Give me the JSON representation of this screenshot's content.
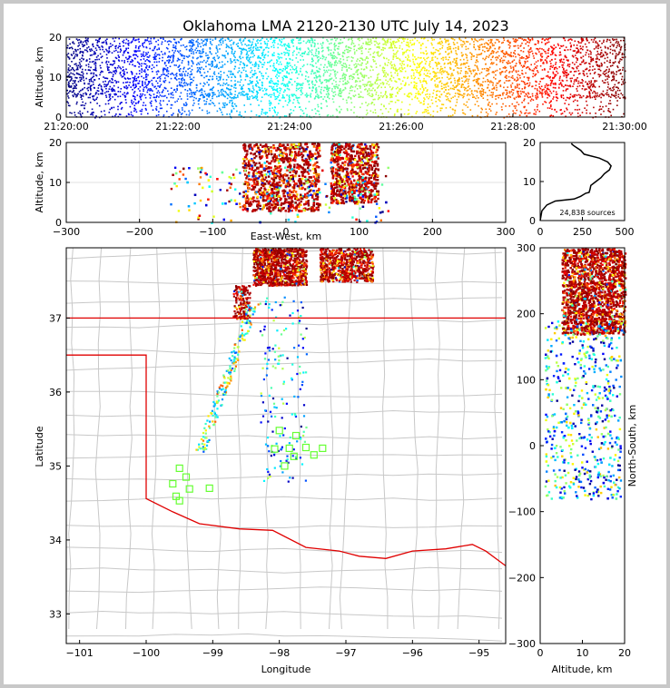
{
  "title": "Oklahoma LMA 2120-2130 UTC July 14, 2023",
  "colors": {
    "state_border": "#e00000",
    "county": "#c8c8c8",
    "station": "#66ff33",
    "frame": "#c8c8c8"
  },
  "chart_data": [
    {
      "name": "time-height",
      "type": "scatter",
      "ylabel": "Altitude, km",
      "ylim": [
        0,
        20
      ],
      "xticks": [
        "21:20:00",
        "21:22:00",
        "21:24:00",
        "21:26:00",
        "21:28:00",
        "21:30:00"
      ],
      "yticks": [
        "0",
        "10",
        "20"
      ]
    },
    {
      "name": "ew-altitude",
      "type": "scatter",
      "xlabel": "East-West, km",
      "ylabel": "Altitude, km",
      "xlim": [
        -300,
        300
      ],
      "ylim": [
        0,
        20
      ],
      "xticks": [
        "−300",
        "−200",
        "−100",
        "0",
        "100",
        "200",
        "300"
      ],
      "yticks": [
        "0",
        "10",
        "20"
      ]
    },
    {
      "name": "altitude-histogram",
      "type": "line",
      "xlim": [
        0,
        500
      ],
      "ylim": [
        0,
        20
      ],
      "xticks": [
        "0",
        "250",
        "500"
      ],
      "yticks": [
        "0",
        "10",
        "20"
      ],
      "annotation": "24,838 sources",
      "x": [
        0,
        10,
        40,
        90,
        200,
        240,
        250,
        270,
        290,
        295,
        300,
        330,
        360,
        380,
        410,
        420,
        400,
        350,
        260,
        240,
        205,
        190,
        185
      ],
      "y": [
        0,
        2.5,
        4,
        5,
        5.5,
        6.2,
        6.5,
        7,
        7.2,
        8,
        9,
        10,
        11,
        12,
        13,
        14,
        15,
        16,
        17,
        18,
        19,
        19.5,
        19.8
      ]
    },
    {
      "name": "plan-view",
      "type": "scatter",
      "xlabel": "Longitude",
      "ylabel": "Latitude",
      "xlim": [
        -101.2,
        -94.6
      ],
      "ylim": [
        32.6,
        37.95
      ],
      "xticks": [
        "−101",
        "−100",
        "−99",
        "−98",
        "−97",
        "−96",
        "−95"
      ],
      "yticks": [
        "33",
        "34",
        "35",
        "36",
        "37"
      ]
    },
    {
      "name": "ns-altitude",
      "type": "scatter",
      "xlabel": "Altitude, km",
      "ylabel": "North-South, km",
      "xlim": [
        0,
        20
      ],
      "ylim": [
        -300,
        300
      ],
      "xticks": [
        "0",
        "10",
        "20"
      ],
      "yticks": [
        "−300",
        "−200",
        "−100",
        "0",
        "100",
        "200",
        "300"
      ]
    }
  ]
}
